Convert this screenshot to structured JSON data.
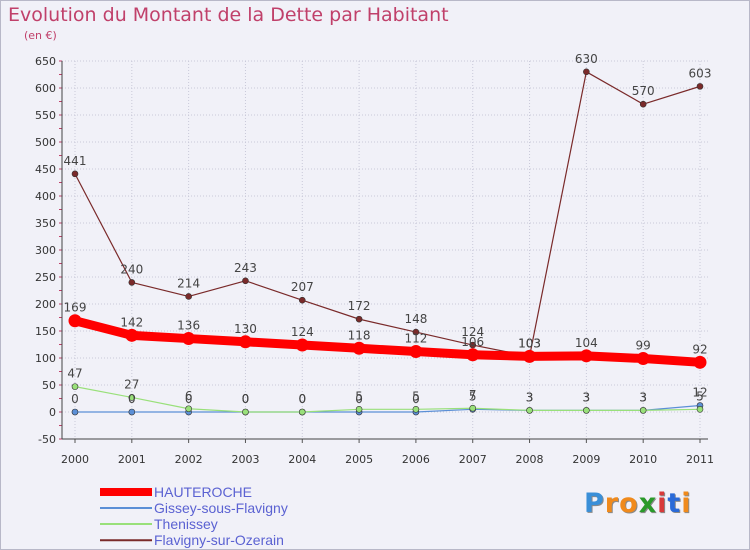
{
  "chart_data": {
    "type": "line",
    "title": "Evolution du Montant de la Dette par Habitant",
    "unit_label": "(en €)",
    "xlabel": "",
    "ylabel": "",
    "categories": [
      "2000",
      "2001",
      "2002",
      "2003",
      "2004",
      "2005",
      "2006",
      "2007",
      "2008",
      "2009",
      "2010",
      "2011"
    ],
    "ylim": [
      -50,
      650
    ],
    "yticks": [
      -50,
      0,
      50,
      100,
      150,
      200,
      250,
      300,
      350,
      400,
      450,
      500,
      550,
      600,
      650
    ],
    "grid": true,
    "legend_position": "bottom-left",
    "series": [
      {
        "name": "HAUTEROCHE",
        "color": "#ff0000",
        "values": [
          169,
          142,
          136,
          130,
          124,
          118,
          112,
          106,
          103,
          104,
          99,
          92
        ],
        "labels": [
          "169",
          "142",
          "136",
          "130",
          "124",
          "118",
          "112",
          "106",
          "103",
          "104",
          "99",
          "92"
        ]
      },
      {
        "name": "Gissey-sous-Flavigny",
        "color": "#5b8fd6",
        "values": [
          0,
          0,
          0,
          0,
          0,
          0,
          0,
          5,
          3,
          3,
          3,
          12
        ],
        "labels": [
          "0",
          "0",
          "0",
          "0",
          "0",
          "0",
          "0",
          "5",
          "3",
          "3",
          "3",
          "12"
        ]
      },
      {
        "name": "Thenissey",
        "color": "#99e07a",
        "values": [
          47,
          27,
          6,
          0,
          0,
          5,
          5,
          7,
          3,
          3,
          3,
          5
        ],
        "labels": [
          "47",
          "27",
          "6",
          "0",
          "0",
          "5",
          "5",
          "7",
          "3",
          "3",
          "3",
          "5"
        ]
      },
      {
        "name": "Flavigny-sur-Ozerain",
        "color": "#7a2a2a",
        "values": [
          441,
          240,
          214,
          243,
          207,
          172,
          148,
          124,
          103,
          630,
          570,
          603
        ],
        "labels": [
          "441",
          "240",
          "214",
          "243",
          "207",
          "172",
          "148",
          "124",
          "103",
          "630",
          "570",
          "603"
        ]
      }
    ]
  },
  "logo": {
    "letters": [
      "P",
      "r",
      "o",
      "x",
      "i",
      "t",
      "i"
    ],
    "colors": [
      "#3a8fd8",
      "#f08a1c",
      "#f08a1c",
      "#2a9a2a",
      "#d83a3a",
      "#2a6ad8",
      "#f08a1c"
    ]
  }
}
